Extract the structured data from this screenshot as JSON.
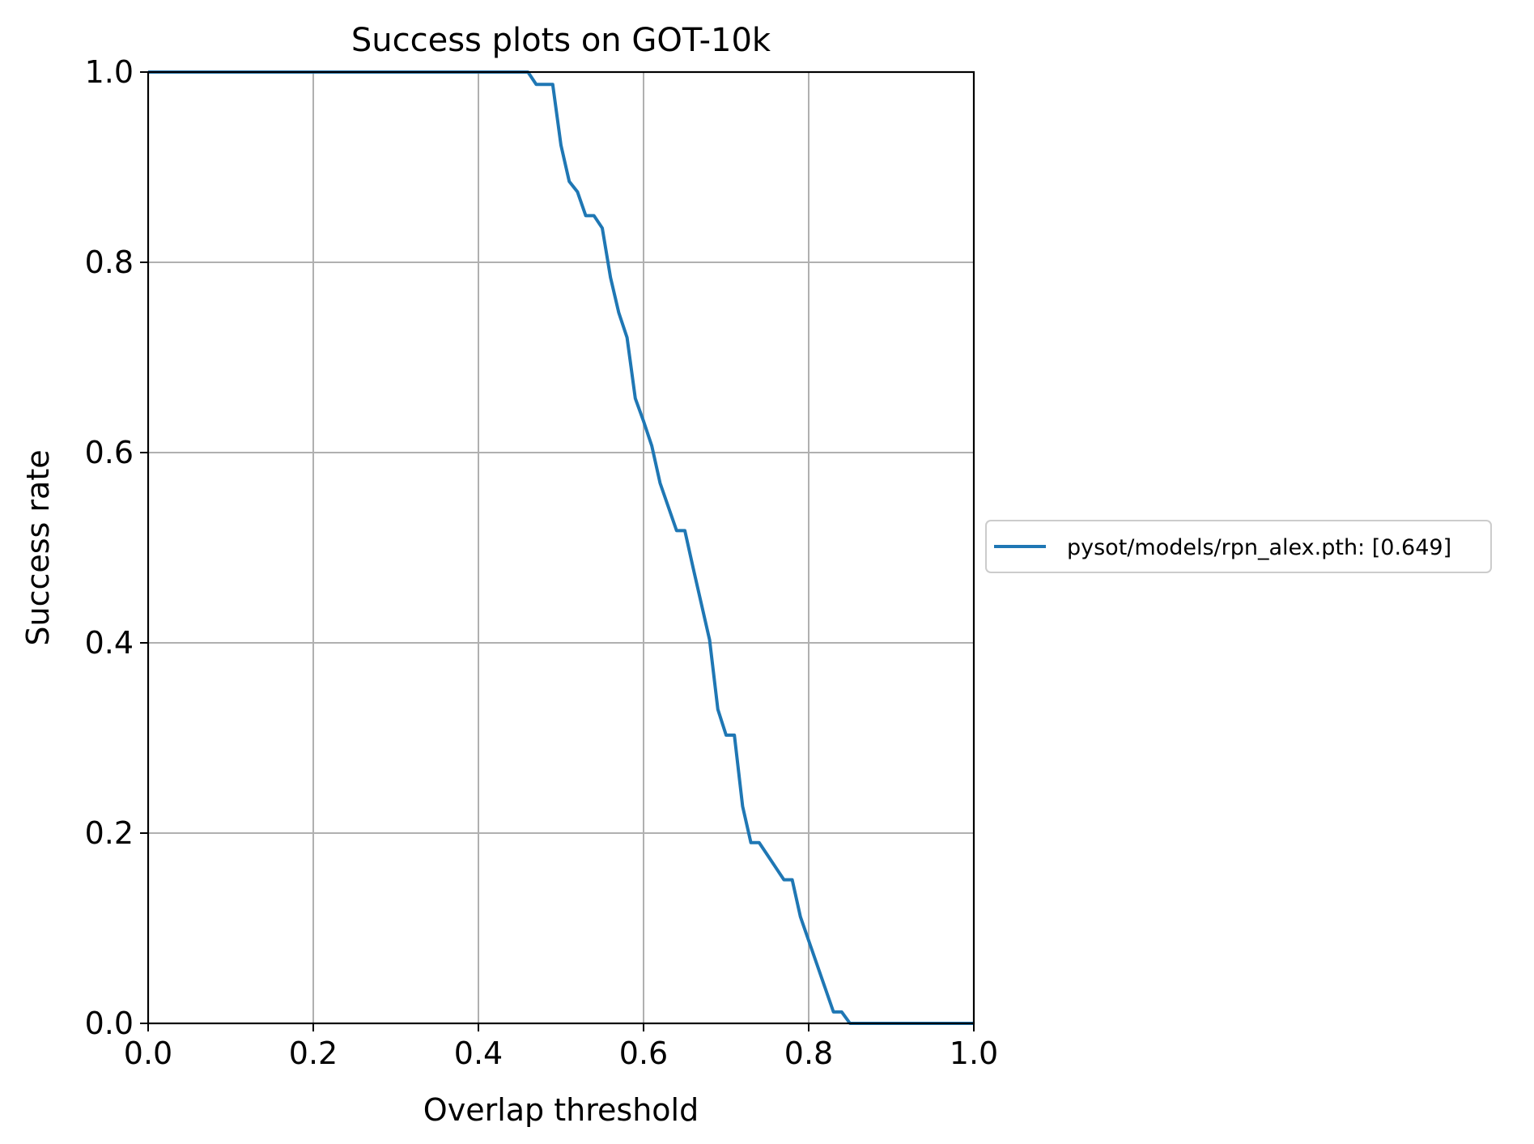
{
  "chart_data": {
    "type": "line",
    "title": "Success plots on GOT-10k",
    "xlabel": "Overlap threshold",
    "ylabel": "Success rate",
    "xlim": [
      0,
      1
    ],
    "ylim": [
      0,
      1
    ],
    "x_ticks": [
      "0.0",
      "0.2",
      "0.4",
      "0.6",
      "0.8",
      "1.0"
    ],
    "y_ticks": [
      "0.0",
      "0.2",
      "0.4",
      "0.6",
      "0.8",
      "1.0"
    ],
    "grid": true,
    "legend_position": "center-right, outside plot",
    "series": [
      {
        "name": "pysot/models/rpn_alex.pth: [0.649]",
        "color": "#1f77b4",
        "points": [
          [
            0.0,
            1.0
          ],
          [
            0.46,
            1.0
          ],
          [
            0.47,
            0.987
          ],
          [
            0.49,
            0.987
          ],
          [
            0.5,
            0.923
          ],
          [
            0.51,
            0.885
          ],
          [
            0.52,
            0.874
          ],
          [
            0.53,
            0.849
          ],
          [
            0.54,
            0.849
          ],
          [
            0.55,
            0.836
          ],
          [
            0.56,
            0.784
          ],
          [
            0.57,
            0.747
          ],
          [
            0.58,
            0.721
          ],
          [
            0.59,
            0.657
          ],
          [
            0.6,
            0.633
          ],
          [
            0.61,
            0.607
          ],
          [
            0.62,
            0.568
          ],
          [
            0.63,
            0.543
          ],
          [
            0.64,
            0.518
          ],
          [
            0.65,
            0.518
          ],
          [
            0.66,
            0.479
          ],
          [
            0.67,
            0.441
          ],
          [
            0.68,
            0.403
          ],
          [
            0.69,
            0.33
          ],
          [
            0.7,
            0.303
          ],
          [
            0.71,
            0.303
          ],
          [
            0.72,
            0.228
          ],
          [
            0.73,
            0.19
          ],
          [
            0.74,
            0.19
          ],
          [
            0.75,
            0.177
          ],
          [
            0.76,
            0.164
          ],
          [
            0.77,
            0.151
          ],
          [
            0.78,
            0.151
          ],
          [
            0.79,
            0.112
          ],
          [
            0.8,
            0.087
          ],
          [
            0.81,
            0.062
          ],
          [
            0.82,
            0.037
          ],
          [
            0.83,
            0.012
          ],
          [
            0.84,
            0.012
          ],
          [
            0.85,
            0.0
          ],
          [
            1.0,
            0.0
          ]
        ]
      }
    ]
  }
}
